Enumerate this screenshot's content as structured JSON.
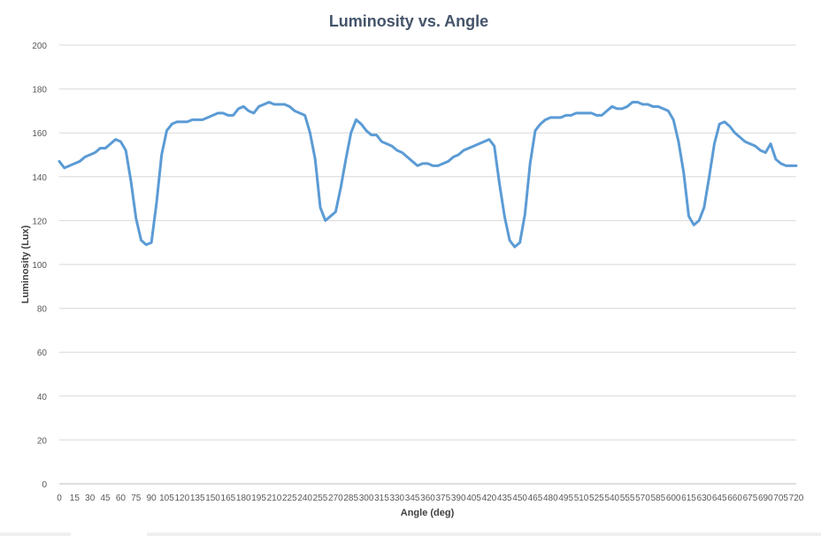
{
  "chart_data": {
    "type": "line",
    "title": "Luminosity vs. Angle",
    "xlabel": "Angle  (deg)",
    "ylabel": "Luminosity (Lux)",
    "ylim": [
      0,
      200
    ],
    "y_ticks": [
      "0",
      "20",
      "40",
      "60",
      "80",
      "100",
      "120",
      "140",
      "160",
      "180",
      "200"
    ],
    "grid": true,
    "legend": "none",
    "series_color": "#5b9bd5",
    "x_tick_labels": [
      "0",
      "15",
      "30",
      "45",
      "60",
      "75",
      "90",
      "105",
      "120",
      "135",
      "150",
      "165",
      "180",
      "195",
      "210",
      "225",
      "240",
      "255",
      "270",
      "285",
      "300",
      "315",
      "330",
      "345",
      "360",
      "375",
      "390",
      "405",
      "420",
      "435",
      "450",
      "465",
      "480",
      "495",
      "510",
      "525",
      "540",
      "555",
      "570",
      "585",
      "600",
      "615",
      "630",
      "645",
      "660",
      "675",
      "690",
      "705",
      "720"
    ],
    "x_step": 5,
    "series": [
      {
        "values": [
          147,
          144,
          145,
          146,
          147,
          149,
          150,
          151,
          153,
          153,
          155,
          157,
          156,
          152,
          138,
          121,
          111,
          109,
          110,
          128,
          150,
          161,
          164,
          165,
          165,
          165,
          166,
          166,
          166,
          167,
          168,
          169,
          169,
          168,
          168,
          171,
          172,
          170,
          169,
          172,
          173,
          174,
          173,
          173,
          173,
          172,
          170,
          169,
          168,
          160,
          148,
          126,
          120,
          122,
          124,
          135,
          148,
          160,
          166,
          164,
          161,
          159,
          159,
          156,
          155,
          154,
          152,
          151,
          149,
          147,
          145,
          146,
          146,
          145,
          145,
          146,
          147,
          149,
          150,
          152,
          153,
          154,
          155,
          156,
          157,
          154,
          137,
          122,
          111,
          108,
          110,
          123,
          146,
          161,
          164,
          166,
          167,
          167,
          167,
          168,
          168,
          169,
          169,
          169,
          169,
          168,
          168,
          170,
          172,
          171,
          171,
          172,
          174,
          174,
          173,
          173,
          172,
          172,
          171,
          170,
          166,
          156,
          142,
          122,
          118,
          120,
          126,
          140,
          155,
          164,
          165,
          163,
          160,
          158,
          156,
          155,
          154,
          152,
          151,
          155,
          148,
          146,
          145,
          145,
          145
        ]
      }
    ]
  }
}
